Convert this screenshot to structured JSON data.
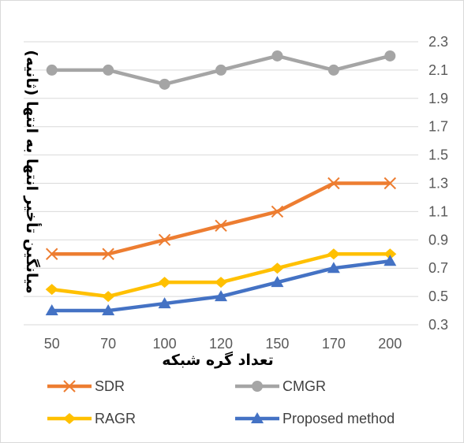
{
  "chart_data": {
    "type": "line",
    "title": "",
    "xlabel": "تعداد گره شبکه",
    "ylabel": "میانگین تأخیر انتها به انتها (ثانیه)",
    "categories": [
      "50",
      "70",
      "100",
      "120",
      "150",
      "170",
      "200"
    ],
    "yticks": [
      "2.3",
      "2.1",
      "1.9",
      "1.7",
      "1.5",
      "1.3",
      "1.1",
      "0.9",
      "0.7",
      "0.5",
      "0.3"
    ],
    "ylim": [
      0.3,
      2.3
    ],
    "y_axis_side": "right",
    "x_axis_reversed": false,
    "grid": true,
    "legend_position": "bottom",
    "series": [
      {
        "name": "SDR",
        "values": [
          0.8,
          0.8,
          0.9,
          1.0,
          1.1,
          1.3,
          1.3
        ],
        "color": "#ed7d31",
        "marker": "x"
      },
      {
        "name": "CMGR",
        "values": [
          2.1,
          2.1,
          2.0,
          2.1,
          2.2,
          2.1,
          2.2
        ],
        "color": "#a5a5a5",
        "marker": "circle"
      },
      {
        "name": "RAGR",
        "values": [
          0.55,
          0.5,
          0.6,
          0.6,
          0.7,
          0.8,
          0.8
        ],
        "color": "#ffc000",
        "marker": "diamond"
      },
      {
        "name": "Proposed method",
        "values": [
          0.4,
          0.4,
          0.45,
          0.5,
          0.6,
          0.7,
          0.75
        ],
        "color": "#4472c4",
        "marker": "triangle"
      }
    ]
  }
}
